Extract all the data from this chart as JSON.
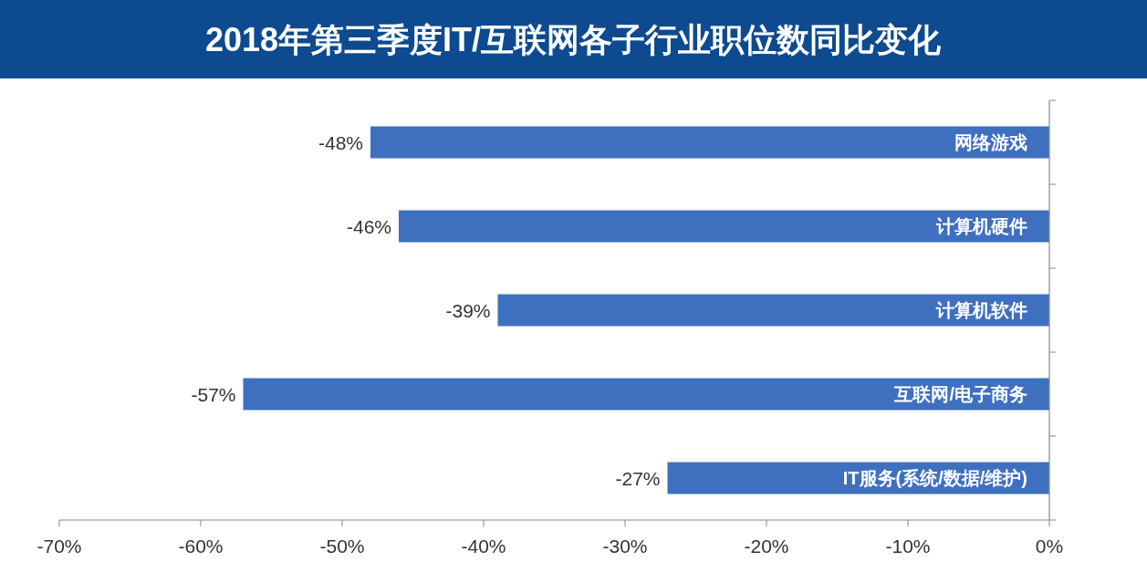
{
  "chart_data": {
    "type": "bar",
    "orientation": "horizontal",
    "title": "2018年第三季度IT/互联网各子行业职位数同比变化",
    "categories": [
      "网络游戏",
      "计算机硬件",
      "计算机软件",
      "互联网/电子商务",
      "IT服务(系统/数据/维护)"
    ],
    "values": [
      -48,
      -46,
      -39,
      -57,
      -27
    ],
    "value_labels": [
      "-48%",
      "-46%",
      "-39%",
      "-57%",
      "-27%"
    ],
    "color": "#3f70bf",
    "xlim": [
      -70,
      0
    ],
    "xticks": [
      {
        "value": -70,
        "label": "-70%"
      },
      {
        "value": -60,
        "label": "-60%"
      },
      {
        "value": -50,
        "label": "-50%"
      },
      {
        "value": -40,
        "label": "-40%"
      },
      {
        "value": -30,
        "label": "-30%"
      },
      {
        "value": -20,
        "label": "-20%"
      },
      {
        "value": -10,
        "label": "-10%"
      },
      {
        "value": 0,
        "label": "0%"
      }
    ]
  }
}
